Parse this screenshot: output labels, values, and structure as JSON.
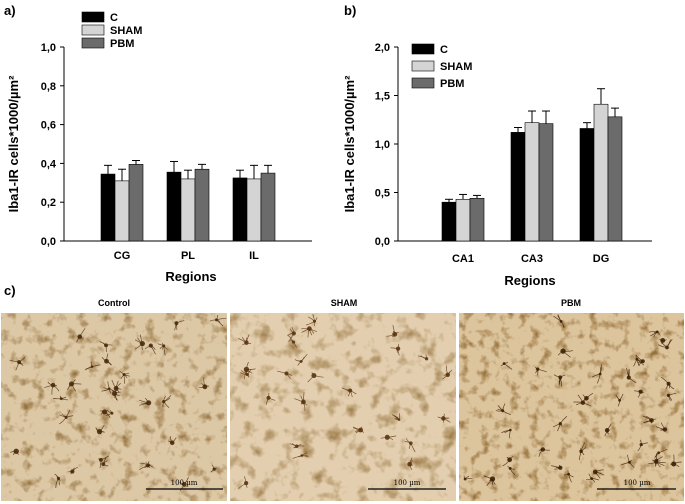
{
  "panels": {
    "a_label": "a)",
    "b_label": "b)",
    "c_label": "c)"
  },
  "chart_data": [
    {
      "type": "bar",
      "panel": "a)",
      "categories": [
        "CG",
        "PL",
        "IL"
      ],
      "series": [
        {
          "name": "C",
          "color": "#000000",
          "values": [
            0.345,
            0.355,
            0.325
          ],
          "errors": [
            0.045,
            0.055,
            0.04
          ]
        },
        {
          "name": "SHAM",
          "color": "#d4d4d4",
          "values": [
            0.31,
            0.32,
            0.32
          ],
          "errors": [
            0.06,
            0.045,
            0.07
          ]
        },
        {
          "name": "PBM",
          "color": "#6b6b6b",
          "values": [
            0.395,
            0.37,
            0.35
          ],
          "errors": [
            0.02,
            0.025,
            0.04
          ]
        }
      ],
      "xlabel": "Regions",
      "ylabel": "Iba1-IR cells*1000/µm²",
      "ylim": [
        0,
        1.0
      ],
      "yticks": [
        "0,0",
        "0,2",
        "0,4",
        "0,6",
        "0,8",
        "1,0"
      ],
      "legend_position": "top-left"
    },
    {
      "type": "bar",
      "panel": "b)",
      "categories": [
        "CA1",
        "CA3",
        "DG"
      ],
      "series": [
        {
          "name": "C",
          "color": "#000000",
          "values": [
            0.4,
            1.12,
            1.16
          ],
          "errors": [
            0.03,
            0.05,
            0.06
          ]
        },
        {
          "name": "SHAM",
          "color": "#d4d4d4",
          "values": [
            0.43,
            1.22,
            1.41
          ],
          "errors": [
            0.05,
            0.12,
            0.16
          ]
        },
        {
          "name": "PBM",
          "color": "#6b6b6b",
          "values": [
            0.44,
            1.21,
            1.28
          ],
          "errors": [
            0.03,
            0.13,
            0.09
          ]
        }
      ],
      "xlabel": "Regions",
      "ylabel": "Iba1-IR cells*1000/µm²",
      "ylim": [
        0,
        2.0
      ],
      "yticks": [
        "0,0",
        "0,5",
        "1,0",
        "1,5",
        "2,0"
      ],
      "legend_position": "top-left"
    }
  ],
  "micrographs": [
    {
      "title": "Control",
      "scale_label": "100 µm"
    },
    {
      "title": "SHAM",
      "scale_label": "100 µm"
    },
    {
      "title": "PBM",
      "scale_label": "100 µm"
    }
  ]
}
